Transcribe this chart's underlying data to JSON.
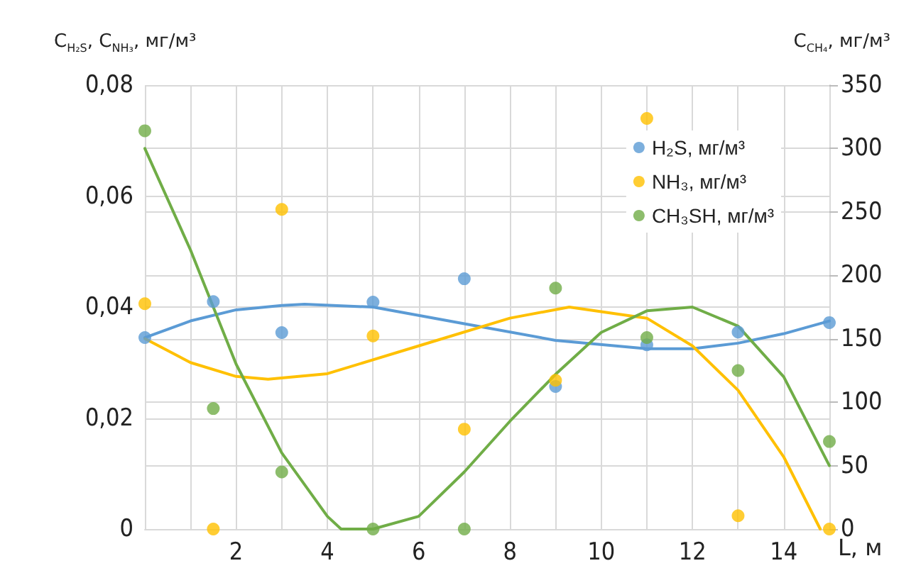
{
  "chart_data": {
    "type": "scatter",
    "xlabel": "L, м",
    "ylabel": "C$_{H₂S}$, C$_{NH₃}$, мг/м³",
    "y2label": "C$_{CH₄}$, мг/м³",
    "xlim": [
      0,
      15
    ],
    "xticks": [
      {
        "value": 0,
        "label": null
      },
      {
        "value": 1,
        "label": null
      },
      2,
      {
        "value": 3,
        "label": null
      },
      4,
      {
        "value": 5,
        "label": null
      },
      6,
      {
        "value": 7,
        "label": null
      },
      8,
      {
        "value": 9,
        "label": null
      },
      10,
      {
        "value": 11,
        "label": null
      },
      12,
      {
        "value": 13,
        "label": null
      },
      14,
      {
        "value": 15,
        "label": null
      }
    ],
    "ylim": [
      0,
      0.08
    ],
    "yticks": [
      0,
      {
        "value": 0.02,
        "label": "0,02"
      },
      {
        "value": 0.04,
        "label": "0,04"
      },
      {
        "value": 0.06,
        "label": "0,06"
      },
      {
        "value": 0.08,
        "label": "0,08"
      }
    ],
    "y2lim": [
      0,
      350
    ],
    "y2ticks": [
      0,
      50,
      100,
      150,
      200,
      250,
      300,
      350
    ],
    "grid": true,
    "legend": "top right",
    "marker": "circle",
    "series": [
      {
        "name": "H₂S, мг/м³",
        "color": "#5b9bd5",
        "x": [
          0,
          1.5,
          3,
          5,
          7,
          9,
          11,
          13,
          15
        ],
        "values": [
          0.0345,
          0.041,
          0.0354,
          0.0409,
          0.0451,
          0.0257,
          0.0332,
          0.0355,
          0.0372
        ]
      },
      {
        "name": "NH₃, мг/м³",
        "color": "#ffc000",
        "x": [
          0,
          1.5,
          3,
          5,
          7,
          9,
          11,
          13,
          15
        ],
        "values": [
          0.0406,
          0,
          0.0576,
          0.0348,
          0.018,
          0.0268,
          0.074,
          0.0024,
          0
        ]
      },
      {
        "name": "CH₃SH, мг/м³",
        "axis": "y2",
        "color": "#70ad47",
        "x": [
          0,
          1.5,
          3,
          5,
          7,
          9,
          11,
          13,
          15
        ],
        "values": [
          314,
          95,
          45,
          0,
          0,
          190,
          151,
          125,
          69
        ]
      },
      {
        "type": "line",
        "marker": "none",
        "color": "#5b9bd5",
        "x": [
          0,
          1,
          2,
          3,
          3.5,
          5,
          7,
          9,
          11,
          12,
          13,
          14,
          15
        ],
        "values": [
          0.0345,
          0.0375,
          0.0395,
          0.0403,
          0.0405,
          0.04,
          0.037,
          0.034,
          0.0325,
          0.0325,
          0.0335,
          0.0352,
          0.0375
        ]
      },
      {
        "type": "line",
        "marker": "none",
        "color": "#ffc000",
        "x": [
          0,
          1,
          2,
          2.7,
          4,
          6,
          8,
          9.3,
          11,
          12,
          13,
          14,
          14.8
        ],
        "values": [
          0.0343,
          0.03,
          0.0275,
          0.027,
          0.028,
          0.033,
          0.038,
          0.04,
          0.038,
          0.033,
          0.025,
          0.013,
          0
        ]
      },
      {
        "type": "line",
        "marker": "none",
        "axis": "y2",
        "color": "#70ad47",
        "x": [
          0,
          1,
          2,
          3,
          4,
          4.3,
          5,
          6,
          7,
          8,
          9,
          10,
          11,
          12,
          13,
          14,
          15
        ],
        "values": [
          300,
          220,
          130,
          60,
          10,
          0,
          0,
          10,
          45,
          85,
          122,
          155,
          172,
          175,
          160,
          120,
          50
        ]
      }
    ]
  }
}
